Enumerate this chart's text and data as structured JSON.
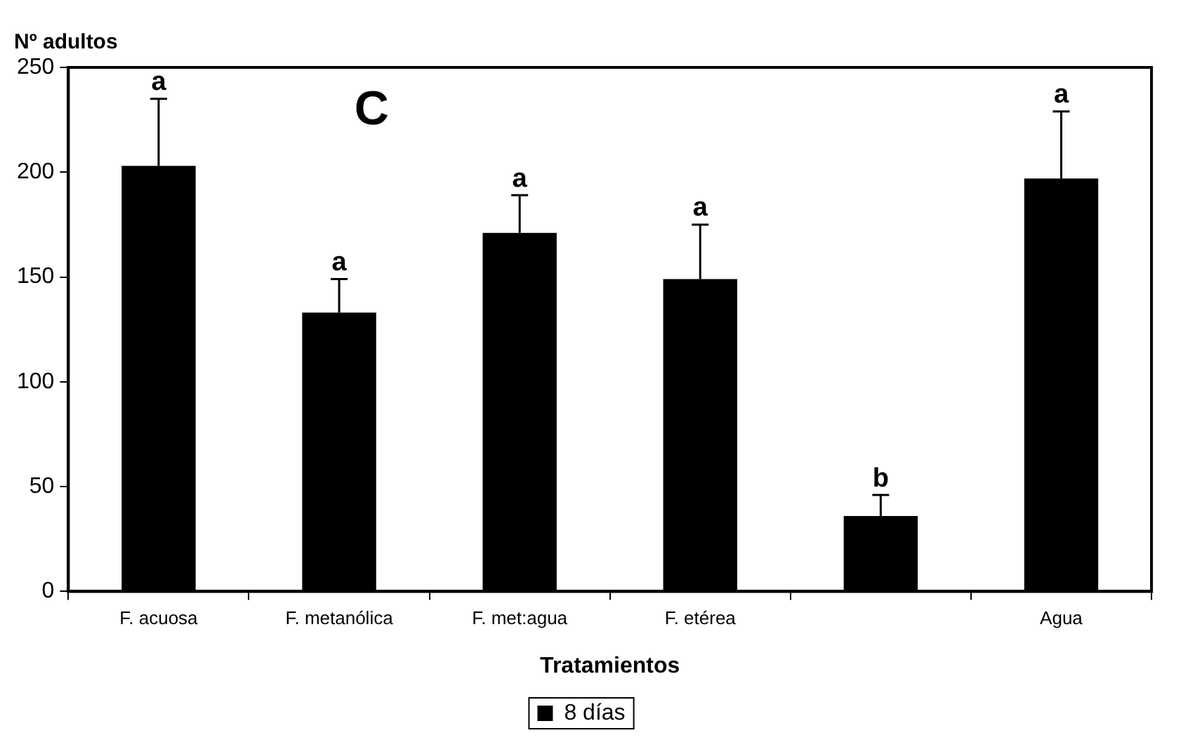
{
  "chart_data": {
    "type": "bar",
    "xlabel": "Tratamientos",
    "ylabel": "Nº adultos",
    "categories": [
      "F. acuosa",
      "F. metanólica",
      "F. met:agua",
      "F. etérea",
      null,
      "Agua"
    ],
    "series": [
      {
        "name": "8 días",
        "color": "#000000",
        "values": [
          203,
          133,
          171,
          149,
          36,
          197
        ],
        "errors": [
          [
            203,
            235
          ],
          [
            133,
            149
          ],
          [
            171,
            189
          ],
          [
            149,
            175
          ],
          [
            36,
            46
          ],
          [
            197,
            229
          ]
        ],
        "value_labels": [
          "a",
          "a",
          "a",
          "a",
          "b",
          "a"
        ]
      }
    ],
    "annotations": [
      "C"
    ],
    "ylim": [
      0,
      250
    ],
    "yticks": [
      0,
      50,
      100,
      150,
      200,
      250
    ],
    "grid": false,
    "legend": "bottom"
  }
}
